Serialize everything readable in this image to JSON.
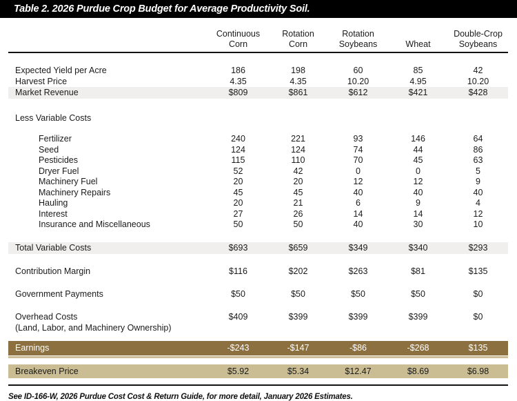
{
  "title": "Table 2. 2026 Purdue Crop Budget for Average Productivity Soil.",
  "footnote": "See ID-166-W, 2026 Purdue Cost Cost & Return Guide, for more detail, January 2026 Estimates.",
  "colors": {
    "header_bar": "#000000",
    "stripe": "#f0efee",
    "earnings_bg": "#8d7040",
    "earnings_text": "#ffffff",
    "accent_light": "#cbbe94",
    "breakeven_bg": "#cabd93",
    "text": "#1a1a1a"
  },
  "table": {
    "columns": [
      {
        "line1": "Continuous",
        "line2": "Corn"
      },
      {
        "line1": "Rotation",
        "line2": "Corn"
      },
      {
        "line1": "Rotation",
        "line2": "Soybeans"
      },
      {
        "line1": "",
        "line2": "Wheat"
      },
      {
        "line1": "Double-Crop",
        "line2": "Soybeans"
      }
    ],
    "rows": [
      {
        "kind": "plain",
        "label": "Expected Yield per Acre",
        "values": [
          "186",
          "198",
          "60",
          "85",
          "42"
        ]
      },
      {
        "kind": "plain",
        "label": "Harvest Price",
        "values": [
          "4.35",
          "4.35",
          "10.20",
          "4.95",
          "10.20"
        ]
      },
      {
        "kind": "stripe",
        "label": "Market Revenue",
        "values": [
          "$809",
          "$861",
          "$612",
          "$421",
          "$428"
        ]
      },
      {
        "kind": "spacer",
        "size": "xl"
      },
      {
        "kind": "section",
        "label": "Less Variable Costs"
      },
      {
        "kind": "spacer",
        "size": "m"
      },
      {
        "kind": "item",
        "label": "Fertilizer",
        "values": [
          "240",
          "221",
          "93",
          "146",
          "64"
        ]
      },
      {
        "kind": "item",
        "label": "Seed",
        "values": [
          "124",
          "124",
          "74",
          "44",
          "86"
        ]
      },
      {
        "kind": "item",
        "label": "Pesticides",
        "values": [
          "115",
          "110",
          "70",
          "45",
          "63"
        ]
      },
      {
        "kind": "item",
        "label": "Dryer Fuel",
        "values": [
          "52",
          "42",
          "0",
          "0",
          "5"
        ]
      },
      {
        "kind": "item",
        "label": "Machinery Fuel",
        "values": [
          "20",
          "20",
          "12",
          "12",
          "9"
        ]
      },
      {
        "kind": "item",
        "label": "Machinery Repairs",
        "values": [
          "45",
          "45",
          "40",
          "40",
          "40"
        ]
      },
      {
        "kind": "item",
        "label": "Hauling",
        "values": [
          "20",
          "21",
          "6",
          "9",
          "4"
        ]
      },
      {
        "kind": "item",
        "label": "Interest",
        "values": [
          "27",
          "26",
          "14",
          "14",
          "12"
        ]
      },
      {
        "kind": "item",
        "label": "Insurance and Miscellaneous",
        "values": [
          "50",
          "50",
          "40",
          "30",
          "10"
        ]
      },
      {
        "kind": "spacer",
        "size": "l"
      },
      {
        "kind": "stripe",
        "label": "Total Variable Costs",
        "values": [
          "$693",
          "$659",
          "$349",
          "$340",
          "$293"
        ]
      },
      {
        "kind": "spacer",
        "size": "l"
      },
      {
        "kind": "plain",
        "label": "Contribution Margin",
        "values": [
          "$116",
          "$202",
          "$263",
          "$81",
          "$135"
        ]
      },
      {
        "kind": "spacer",
        "size": "l"
      },
      {
        "kind": "plain",
        "label": "Government Payments",
        "values": [
          "$50",
          "$50",
          "$50",
          "$50",
          "$0"
        ]
      },
      {
        "kind": "spacer",
        "size": "l"
      },
      {
        "kind": "plain",
        "label": "Overhead Costs",
        "sublabel": "(Land, Labor, and Machinery Ownership)",
        "values": [
          "$409",
          "$399",
          "$399",
          "$399",
          "$0"
        ]
      },
      {
        "kind": "spacer",
        "size": "s"
      },
      {
        "kind": "earnings",
        "label": "Earnings",
        "values": [
          "-$243",
          "-$147",
          "-$86",
          "-$268",
          "$135"
        ]
      },
      {
        "kind": "spacer",
        "size": "sm"
      },
      {
        "kind": "breakeven",
        "label": "Breakeven Price",
        "values": [
          "$5.92",
          "$5.34",
          "$12.47",
          "$8.69",
          "$6.98"
        ]
      }
    ]
  }
}
